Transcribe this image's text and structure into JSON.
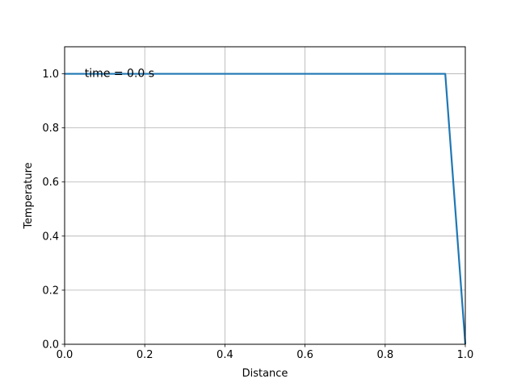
{
  "chart_data": {
    "type": "line",
    "xlabel": "Distance",
    "ylabel": "Temperature",
    "xlim": [
      0.0,
      1.0
    ],
    "ylim": [
      0.0,
      1.1
    ],
    "xticks": [
      "0.0",
      "0.2",
      "0.4",
      "0.6",
      "0.8",
      "1.0"
    ],
    "yticks": [
      "0.0",
      "0.2",
      "0.4",
      "0.6",
      "0.8",
      "1.0"
    ],
    "grid": true,
    "annotation": "time = 0.0 s",
    "series": [
      {
        "color": "#1f77b4",
        "x": [
          0.0,
          0.95,
          1.0
        ],
        "y": [
          1.0,
          1.0,
          0.0
        ]
      }
    ]
  }
}
